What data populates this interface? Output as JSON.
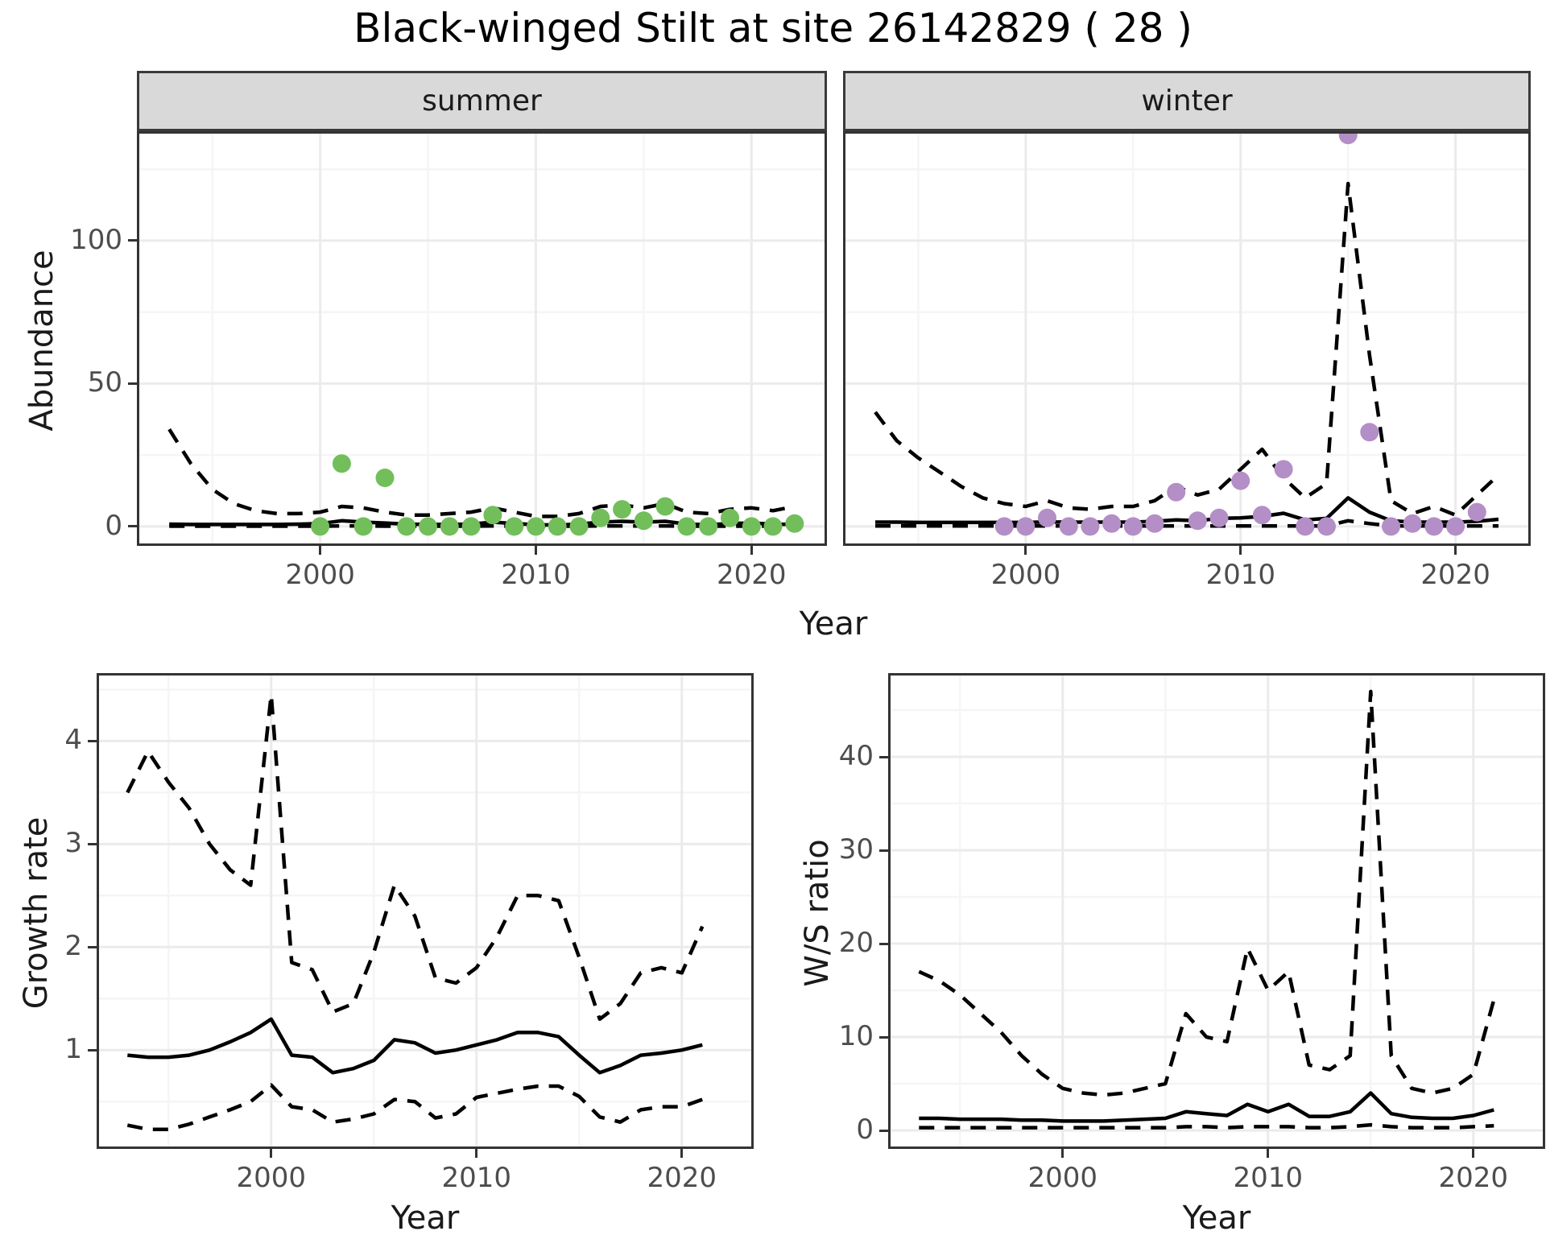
{
  "title": "Black-winged Stilt at site 26142829 ( 28 )",
  "facets": {
    "summer_label": "summer",
    "winter_label": "winter"
  },
  "axes": {
    "abundance_label": "Abundance",
    "growth_label": "Growth rate",
    "ws_label": "W/S ratio",
    "year_label": "Year"
  },
  "colors": {
    "summer_point": "#72be5b",
    "winter_point": "#b48ec6",
    "line": "#000000",
    "strip_bg": "#d9d9d9",
    "panel_border": "#333333",
    "grid_major": "#ebebeb",
    "grid_minor": "#f5f5f5",
    "axis_text": "#4d4d4d"
  },
  "chart_data": [
    {
      "type": "line",
      "title": "summer",
      "xlabel": "Year",
      "ylabel": "Abundance",
      "xlim": [
        1991.5,
        2023.5
      ],
      "ylim": [
        -6.8,
        138.3
      ],
      "x_ticks": [
        2000,
        2010,
        2020
      ],
      "x_minor": [
        1995,
        2005,
        2015
      ],
      "y_ticks": [
        0,
        50,
        100
      ],
      "y_minor": [
        25,
        75,
        125
      ],
      "x": [
        1993,
        1994,
        1995,
        1996,
        1997,
        1998,
        1999,
        2000,
        2001,
        2002,
        2003,
        2004,
        2005,
        2006,
        2007,
        2008,
        2009,
        2010,
        2011,
        2012,
        2013,
        2014,
        2015,
        2016,
        2017,
        2018,
        2019,
        2020,
        2021,
        2022
      ],
      "series": [
        {
          "name": "mean",
          "style": "solid",
          "values": [
            0.8,
            0.7,
            0.7,
            0.7,
            0.7,
            0.7,
            0.8,
            1.0,
            2.0,
            1.5,
            1.2,
            0.8,
            0.7,
            0.7,
            0.8,
            1.5,
            1.0,
            0.6,
            0.5,
            0.8,
            1.5,
            1.8,
            1.5,
            1.8,
            0.8,
            0.6,
            1.0,
            1.2,
            0.8,
            0.7
          ]
        },
        {
          "name": "upper_95ci",
          "style": "dashed",
          "values": [
            34,
            22,
            13,
            8,
            5.5,
            4.5,
            4.5,
            5,
            7,
            6.5,
            5,
            4,
            4,
            4.5,
            5,
            6.5,
            5,
            3.5,
            3.5,
            4.5,
            7,
            7.5,
            6.5,
            8,
            5,
            4.5,
            6,
            6.5,
            5.5,
            7
          ]
        },
        {
          "name": "lower_95ci",
          "style": "dashed",
          "values": [
            0.1,
            0.1,
            0.1,
            0.1,
            0.1,
            0.1,
            0.1,
            0.1,
            0.2,
            0.2,
            0.1,
            0.1,
            0.1,
            0.1,
            0.1,
            0.2,
            0.1,
            0.1,
            0.1,
            0.1,
            0.2,
            0.2,
            0.2,
            0.2,
            0.1,
            0.1,
            0.1,
            0.1,
            0.1,
            0.1
          ]
        }
      ],
      "points": {
        "name": "observed_counts_summer",
        "color_key": "summer_point",
        "data": [
          [
            2000,
            0
          ],
          [
            2001,
            22
          ],
          [
            2002,
            0
          ],
          [
            2003,
            17
          ],
          [
            2004,
            0
          ],
          [
            2005,
            0
          ],
          [
            2006,
            0
          ],
          [
            2007,
            0
          ],
          [
            2008,
            4
          ],
          [
            2009,
            0
          ],
          [
            2010,
            0
          ],
          [
            2011,
            0
          ],
          [
            2012,
            0
          ],
          [
            2013,
            3
          ],
          [
            2014,
            6
          ],
          [
            2015,
            2
          ],
          [
            2016,
            7
          ],
          [
            2017,
            0
          ],
          [
            2018,
            0
          ],
          [
            2019,
            3
          ],
          [
            2020,
            0
          ],
          [
            2021,
            0
          ],
          [
            2022,
            1
          ]
        ]
      }
    },
    {
      "type": "line",
      "title": "winter",
      "xlabel": "Year",
      "ylabel": "Abundance",
      "xlim": [
        1991.5,
        2023.5
      ],
      "ylim": [
        -6.8,
        138.3
      ],
      "x_ticks": [
        2000,
        2010,
        2020
      ],
      "x_minor": [
        1995,
        2005,
        2015
      ],
      "y_ticks": [
        0,
        50,
        100
      ],
      "y_minor": [
        25,
        75,
        125
      ],
      "x": [
        1993,
        1994,
        1995,
        1996,
        1997,
        1998,
        1999,
        2000,
        2001,
        2002,
        2003,
        2004,
        2005,
        2006,
        2007,
        2008,
        2009,
        2010,
        2011,
        2012,
        2013,
        2014,
        2015,
        2016,
        2017,
        2018,
        2019,
        2020,
        2021,
        2022
      ],
      "series": [
        {
          "name": "mean",
          "style": "solid",
          "values": [
            1.5,
            1.5,
            1.4,
            1.4,
            1.4,
            1.4,
            1.4,
            1.4,
            1.6,
            1.5,
            1.5,
            1.5,
            1.5,
            1.8,
            2.3,
            2.0,
            2.8,
            3.0,
            3.5,
            4.6,
            2.3,
            2.8,
            10,
            5,
            2,
            1.5,
            1.5,
            1.5,
            1.8,
            2.5
          ]
        },
        {
          "name": "upper_95ci",
          "style": "dashed",
          "values": [
            40,
            30,
            24,
            19,
            14,
            10,
            8,
            7,
            9,
            6.5,
            6,
            7,
            7,
            9,
            14,
            11,
            13,
            20,
            27,
            17,
            10,
            15,
            120,
            60,
            9,
            4.5,
            7,
            4,
            11,
            18
          ]
        },
        {
          "name": "lower_95ci",
          "style": "dashed",
          "values": [
            0.2,
            0.2,
            0.2,
            0.2,
            0.2,
            0.2,
            0.2,
            0.2,
            0.2,
            0.2,
            0.2,
            0.2,
            0.2,
            0.2,
            0.2,
            0.2,
            0.2,
            0.2,
            0.2,
            0.2,
            0.2,
            0.2,
            2,
            1,
            0.2,
            0.2,
            0.2,
            0.2,
            0.2,
            0.2
          ]
        }
      ],
      "points": {
        "name": "observed_counts_winter",
        "color_key": "winter_point",
        "data": [
          [
            1999,
            0
          ],
          [
            2000,
            0
          ],
          [
            2001,
            3
          ],
          [
            2002,
            0
          ],
          [
            2003,
            0
          ],
          [
            2004,
            1
          ],
          [
            2005,
            0
          ],
          [
            2006,
            1
          ],
          [
            2007,
            12
          ],
          [
            2008,
            2
          ],
          [
            2009,
            3
          ],
          [
            2010,
            16
          ],
          [
            2011,
            4
          ],
          [
            2012,
            20
          ],
          [
            2013,
            0
          ],
          [
            2014,
            0
          ],
          [
            2015,
            137
          ],
          [
            2016,
            33
          ],
          [
            2017,
            0
          ],
          [
            2018,
            1
          ],
          [
            2019,
            0
          ],
          [
            2020,
            0
          ],
          [
            2021,
            5
          ]
        ]
      }
    },
    {
      "type": "line",
      "title": "Growth rate",
      "xlabel": "Year",
      "ylabel": "Growth rate",
      "xlim": [
        1991.5,
        2023.5
      ],
      "ylim": [
        0.04,
        4.66
      ],
      "x_ticks": [
        2000,
        2010,
        2020
      ],
      "x_minor": [
        1995,
        2005,
        2015
      ],
      "y_ticks": [
        1,
        2,
        3,
        4
      ],
      "y_minor": [
        0.5,
        1.5,
        2.5,
        3.5,
        4.5
      ],
      "x": [
        1993,
        1994,
        1995,
        1996,
        1997,
        1998,
        1999,
        2000,
        2001,
        2002,
        2003,
        2004,
        2005,
        2006,
        2007,
        2008,
        2009,
        2010,
        2011,
        2012,
        2013,
        2014,
        2015,
        2016,
        2017,
        2018,
        2019,
        2020,
        2021
      ],
      "series": [
        {
          "name": "mean",
          "style": "solid",
          "values": [
            0.95,
            0.93,
            0.93,
            0.95,
            1.0,
            1.08,
            1.17,
            1.3,
            0.95,
            0.93,
            0.78,
            0.82,
            0.9,
            1.1,
            1.07,
            0.97,
            1.0,
            1.05,
            1.1,
            1.17,
            1.17,
            1.13,
            0.95,
            0.78,
            0.85,
            0.95,
            0.97,
            1.0,
            1.05
          ]
        },
        {
          "name": "upper_95ci",
          "style": "dashed",
          "values": [
            3.5,
            3.9,
            3.6,
            3.35,
            3.0,
            2.75,
            2.6,
            4.45,
            1.85,
            1.78,
            1.37,
            1.45,
            1.95,
            2.6,
            2.3,
            1.7,
            1.65,
            1.8,
            2.1,
            2.5,
            2.5,
            2.45,
            1.9,
            1.3,
            1.45,
            1.75,
            1.8,
            1.75,
            2.2
          ]
        },
        {
          "name": "lower_95ci",
          "style": "dashed",
          "values": [
            0.27,
            0.23,
            0.23,
            0.28,
            0.35,
            0.42,
            0.5,
            0.66,
            0.45,
            0.42,
            0.3,
            0.33,
            0.38,
            0.52,
            0.5,
            0.34,
            0.38,
            0.54,
            0.58,
            0.62,
            0.65,
            0.65,
            0.55,
            0.35,
            0.3,
            0.42,
            0.45,
            0.45,
            0.52
          ]
        }
      ],
      "points": null
    },
    {
      "type": "line",
      "title": "W/S ratio",
      "xlabel": "Year",
      "ylabel": "W/S ratio",
      "xlim": [
        1991.5,
        2023.5
      ],
      "ylim": [
        -1.98,
        48.97
      ],
      "x_ticks": [
        2000,
        2010,
        2020
      ],
      "x_minor": [
        1995,
        2005,
        2015
      ],
      "y_ticks": [
        0,
        10,
        20,
        30,
        40
      ],
      "y_minor": [
        5,
        15,
        25,
        35,
        45
      ],
      "x": [
        1993,
        1994,
        1995,
        1996,
        1997,
        1998,
        1999,
        2000,
        2001,
        2002,
        2003,
        2004,
        2005,
        2006,
        2007,
        2008,
        2009,
        2010,
        2011,
        2012,
        2013,
        2014,
        2015,
        2016,
        2017,
        2018,
        2019,
        2020,
        2021
      ],
      "series": [
        {
          "name": "mean",
          "style": "solid",
          "values": [
            1.3,
            1.3,
            1.2,
            1.2,
            1.2,
            1.1,
            1.1,
            1.0,
            1.0,
            1.0,
            1.1,
            1.2,
            1.3,
            2.0,
            1.8,
            1.6,
            2.8,
            2.0,
            2.8,
            1.5,
            1.5,
            2.0,
            4.0,
            1.8,
            1.4,
            1.3,
            1.3,
            1.6,
            2.2
          ]
        },
        {
          "name": "upper_95ci",
          "style": "dashed",
          "values": [
            17,
            16,
            14.5,
            12.5,
            10.5,
            8,
            6,
            4.5,
            4,
            3.8,
            4,
            4.5,
            5,
            12.5,
            10,
            9.5,
            19.5,
            15,
            17,
            7,
            6.5,
            8,
            47,
            8,
            4.5,
            4,
            4.5,
            6,
            14
          ]
        },
        {
          "name": "lower_95ci",
          "style": "dashed",
          "values": [
            0.3,
            0.3,
            0.3,
            0.3,
            0.3,
            0.3,
            0.3,
            0.3,
            0.3,
            0.3,
            0.3,
            0.3,
            0.3,
            0.4,
            0.4,
            0.3,
            0.4,
            0.4,
            0.4,
            0.3,
            0.3,
            0.4,
            0.6,
            0.4,
            0.3,
            0.3,
            0.3,
            0.4,
            0.5
          ]
        }
      ],
      "points": null
    }
  ]
}
